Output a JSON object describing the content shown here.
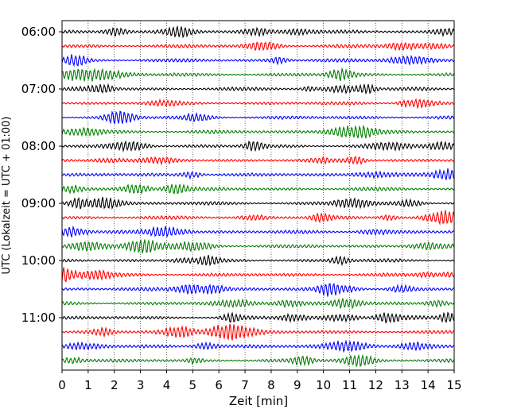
{
  "chart_data": {
    "type": "line",
    "title": "",
    "xlabel": "Zeit  [min]",
    "ylabel": "UTC (Lokalzeit = UTC + 01:00)",
    "xlim": [
      0,
      15
    ],
    "x_ticks": [
      "0",
      "1",
      "2",
      "3",
      "4",
      "5",
      "6",
      "7",
      "8",
      "9",
      "10",
      "11",
      "12",
      "13",
      "14",
      "15"
    ],
    "y_ticks": [
      "06:00",
      "07:00",
      "08:00",
      "09:00",
      "10:00",
      "11:00"
    ],
    "grid": "vertical dotted",
    "row_minutes": 15,
    "start_time": "06:00",
    "row_colors": [
      "#000000",
      "#ff0000",
      "#0000ff",
      "#008000"
    ],
    "rows": 24
  }
}
